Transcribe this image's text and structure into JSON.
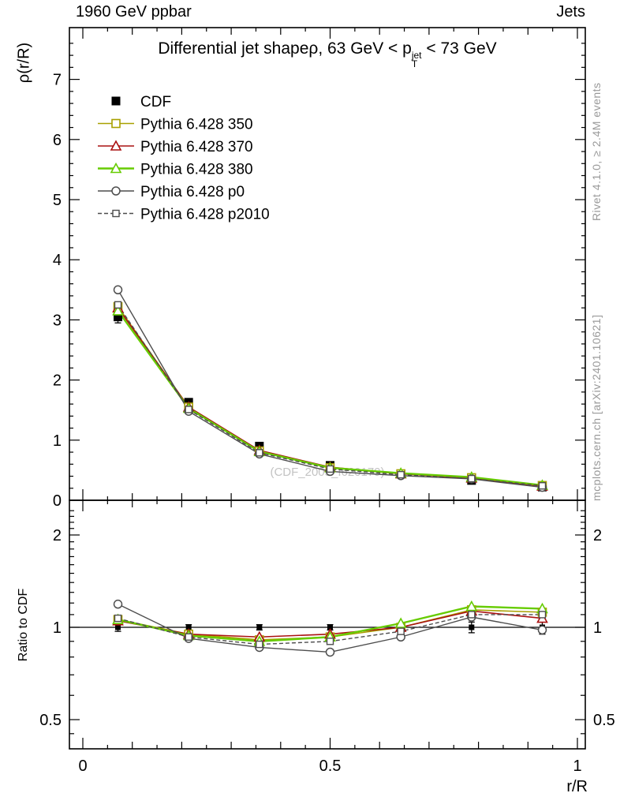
{
  "header": {
    "left": "1960 GeV ppbar",
    "right": "Jets"
  },
  "side_text": {
    "rivet": "Rivet 4.1.0, ≥ 2.4M events",
    "mcplots": "mcplots.cern.ch [arXiv:2401.10621]"
  },
  "watermark": "(CDF_2005_I620179)",
  "title": {
    "prefix": "Differential jet shape",
    "rho": "ρ",
    "mid": ", 63 GeV < p",
    "sup": "jet",
    "sub": "T",
    "suffix": " < 73 GeV"
  },
  "axes": {
    "ylabel_main": "ρ(r/R)",
    "ylabel_ratio": "Ratio to CDF",
    "xlabel": "r/R"
  },
  "chart_data": {
    "type": "line",
    "title": "Differential jet shape ρ, 63 GeV < pT(jet) < 73 GeV",
    "xlabel": "r/R",
    "ylabel": "ρ(r/R)",
    "ratio_ylabel": "Ratio to CDF",
    "xlim": [
      -0.027,
      1.016
    ],
    "main_ylim": [
      0,
      7.86
    ],
    "main_yticks": [
      0,
      1,
      2,
      3,
      4,
      5,
      6,
      7
    ],
    "ratio_ylim": [
      0.4,
      2.6
    ],
    "ratio_scale": "log",
    "ratio_yticks": [
      0.5,
      1,
      2
    ],
    "xticks": [
      0,
      0.5,
      1
    ],
    "legend_position": "top-left-inside",
    "grid": false,
    "reference_line_ratio": 1,
    "x": [
      0.071,
      0.214,
      0.357,
      0.5,
      0.643,
      0.786,
      0.929
    ],
    "series": [
      {
        "name": "CDF",
        "color": "#000000",
        "marker": "square-filled",
        "line": "none",
        "values": [
          3.05,
          1.63,
          0.9,
          0.58,
          0.44,
          0.33,
          0.22
        ],
        "errors": [
          0.1,
          0.06,
          0.04,
          0.03,
          0.03,
          0.025,
          0.02
        ],
        "ratio": [
          1,
          1,
          1,
          1,
          1,
          1,
          1
        ],
        "ratio_errors": [
          0.03,
          0.02,
          0.02,
          0.02,
          0.03,
          0.04,
          0.05
        ]
      },
      {
        "name": "Pythia 6.428 350",
        "color": "#a8a000",
        "marker": "square-open",
        "line": "solid",
        "width": 1.6,
        "values": [
          3.22,
          1.55,
          0.82,
          0.54,
          0.44,
          0.375,
          0.245
        ],
        "ratio": [
          1.06,
          0.95,
          0.91,
          0.93,
          1.0,
          1.14,
          1.12
        ]
      },
      {
        "name": "Pythia 6.428 370",
        "color": "#aa1111",
        "marker": "triangle-open",
        "line": "solid",
        "width": 1.6,
        "values": [
          3.2,
          1.55,
          0.83,
          0.55,
          0.44,
          0.37,
          0.235
        ],
        "ratio": [
          1.05,
          0.95,
          0.93,
          0.95,
          1.0,
          1.13,
          1.07
        ]
      },
      {
        "name": "Pythia 6.428 380",
        "color": "#66cc00",
        "marker": "triangle-open",
        "line": "solid",
        "width": 2.4,
        "values": [
          3.15,
          1.53,
          0.81,
          0.54,
          0.45,
          0.385,
          0.25
        ],
        "ratio": [
          1.06,
          0.94,
          0.9,
          0.93,
          1.03,
          1.17,
          1.15
        ]
      },
      {
        "name": "Pythia 6.428 p0",
        "color": "#4d4d4d",
        "marker": "circle-open",
        "line": "solid",
        "width": 1.4,
        "values": [
          3.5,
          1.48,
          0.77,
          0.48,
          0.41,
          0.355,
          0.215
        ],
        "ratio": [
          1.19,
          0.92,
          0.86,
          0.83,
          0.93,
          1.08,
          0.98
        ]
      },
      {
        "name": "Pythia 6.428 p2010",
        "color": "#4d4d4d",
        "marker": "square-open-small",
        "line": "dashed",
        "width": 1.4,
        "values": [
          3.25,
          1.51,
          0.79,
          0.52,
          0.425,
          0.36,
          0.24
        ],
        "ratio": [
          1.07,
          0.93,
          0.88,
          0.9,
          0.97,
          1.1,
          1.1
        ]
      }
    ]
  }
}
